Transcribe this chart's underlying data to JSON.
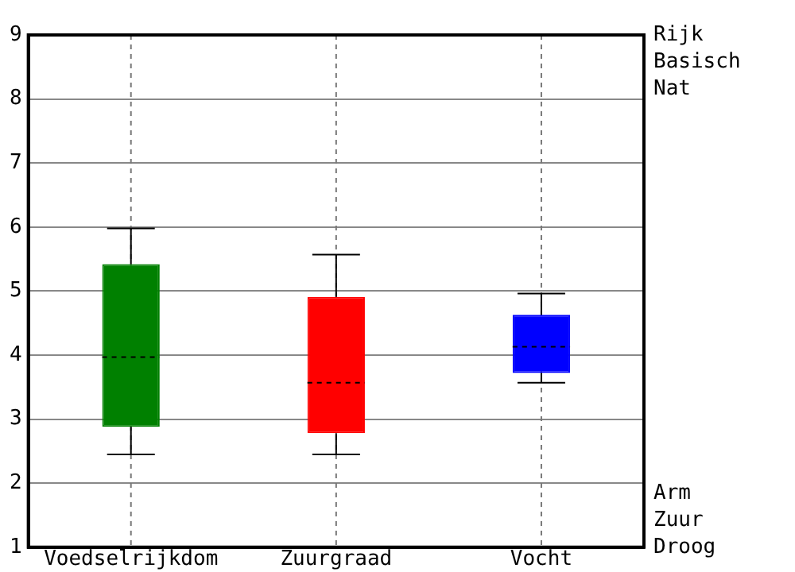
{
  "chart_data": {
    "type": "box",
    "categories": [
      "Voedselrijkdom",
      "Zuurgraad",
      "Vocht"
    ],
    "colors": [
      "#008000",
      "#ff0000",
      "#0000ff"
    ],
    "boxes": [
      {
        "low": 2.45,
        "q1": 2.88,
        "median": 3.97,
        "q3": 5.42,
        "high": 5.98
      },
      {
        "low": 2.45,
        "q1": 2.78,
        "median": 3.57,
        "q3": 4.91,
        "high": 5.57
      },
      {
        "low": 3.57,
        "q1": 3.72,
        "median": 4.13,
        "q3": 4.63,
        "high": 4.96
      }
    ],
    "ylim": [
      1,
      9
    ],
    "yticks": [
      1,
      2,
      3,
      4,
      5,
      6,
      7,
      8,
      9
    ],
    "grid": true,
    "legend": false,
    "annotations": [
      "Rijk",
      "Basisch",
      "Nat",
      "Arm",
      "Zuur",
      "Droog"
    ]
  }
}
